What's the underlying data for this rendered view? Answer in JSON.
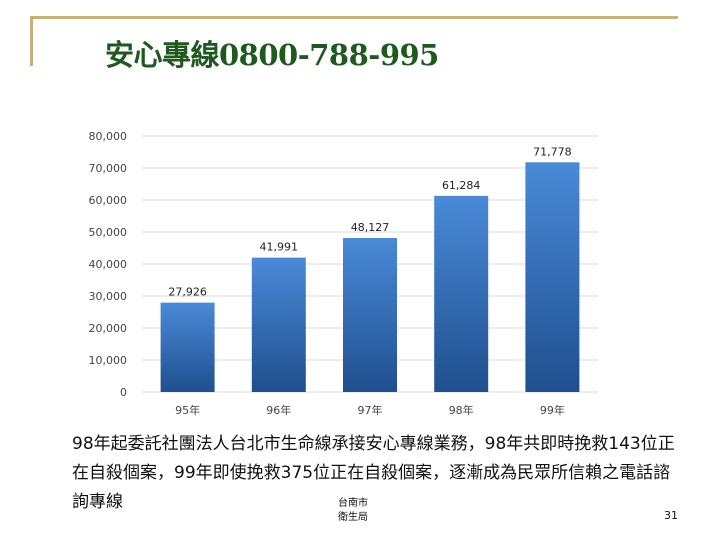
{
  "title": "安心專線0800-788-995",
  "chart_data": {
    "type": "bar",
    "categories": [
      "95年",
      "96年",
      "97年",
      "98年",
      "99年"
    ],
    "values": [
      27926,
      41991,
      48127,
      61284,
      71778
    ],
    "value_labels": [
      "27,926",
      "41,991",
      "48,127",
      "61,284",
      "71,778"
    ],
    "y_ticks": [
      "0",
      "10,000",
      "20,000",
      "30,000",
      "40,000",
      "50,000",
      "60,000",
      "70,000",
      "80,000"
    ],
    "ylim": [
      0,
      80000
    ],
    "grid": true,
    "bar_color": "#3a78c8",
    "bar_color_dark": "#1f4f8f",
    "title": "",
    "xlabel": "",
    "ylabel": ""
  },
  "caption": "98年起委託社團法人台北市生命線承接安心專線業務，98年共即時挽救143位正在自殺個案，99年即使挽救375位正在自殺個案，逐漸成為民眾所信賴之電話諮詢專線",
  "footer": {
    "org_line1": "台南市",
    "org_line2": "衛生局",
    "page_number": "31"
  },
  "colors": {
    "frame": "#c8b273",
    "title": "#1e5a1e"
  }
}
